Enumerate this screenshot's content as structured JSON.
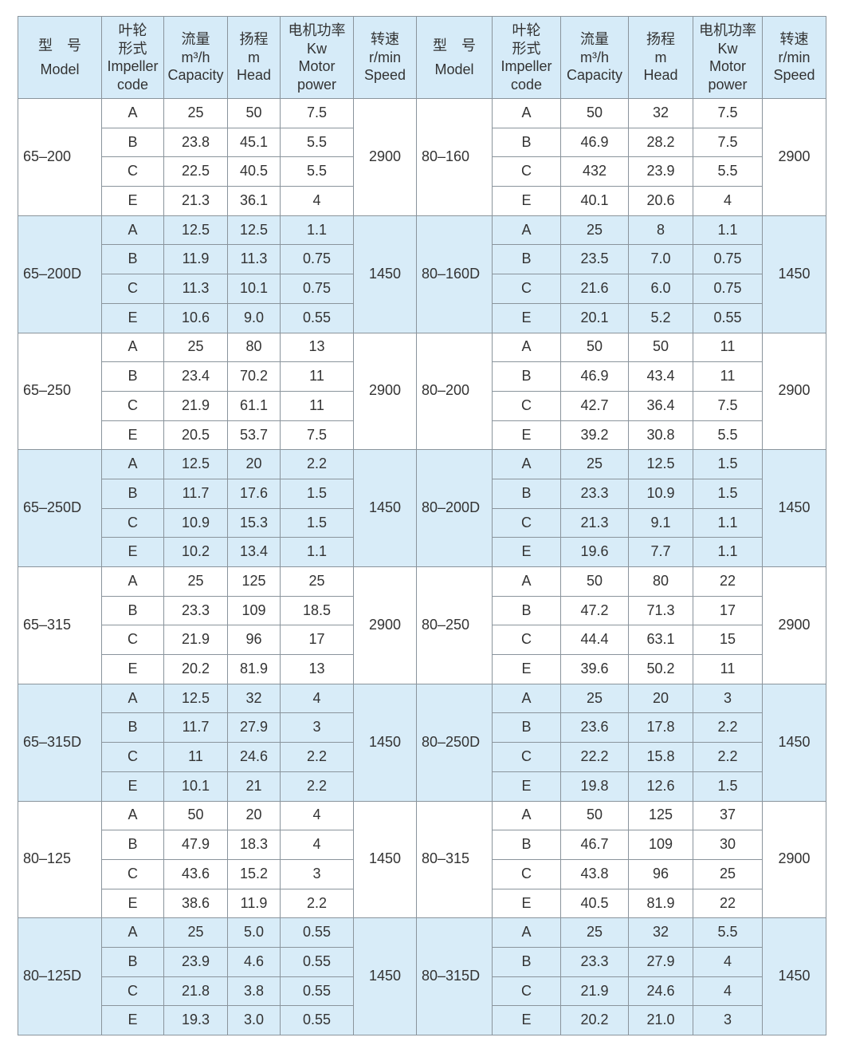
{
  "header": [
    [
      "型　号",
      "Model"
    ],
    [
      "叶轮",
      "形式",
      "Impeller",
      "code"
    ],
    [
      "流量",
      "m³/h",
      "Capacity"
    ],
    [
      "扬程",
      "m",
      "Head"
    ],
    [
      "电机功率",
      "Kw",
      "Motor",
      "power"
    ],
    [
      "转速",
      "r/min",
      "Speed"
    ]
  ],
  "colors": {
    "header_bg": "#d6ebf8",
    "band_blue": "#d8ecf8",
    "band_white": "#ffffff",
    "border": "#8a949c"
  },
  "left": [
    {
      "model": "65–200",
      "speed": "2900",
      "rows": [
        [
          "A",
          "25",
          "50",
          "7.5"
        ],
        [
          "B",
          "23.8",
          "45.1",
          "5.5"
        ],
        [
          "C",
          "22.5",
          "40.5",
          "5.5"
        ],
        [
          "E",
          "21.3",
          "36.1",
          "4"
        ]
      ]
    },
    {
      "model": "65–200D",
      "speed": "1450",
      "rows": [
        [
          "A",
          "12.5",
          "12.5",
          "1.1"
        ],
        [
          "B",
          "11.9",
          "11.3",
          "0.75"
        ],
        [
          "C",
          "11.3",
          "10.1",
          "0.75"
        ],
        [
          "E",
          "10.6",
          "9.0",
          "0.55"
        ]
      ]
    },
    {
      "model": "65–250",
      "speed": "2900",
      "rows": [
        [
          "A",
          "25",
          "80",
          "13"
        ],
        [
          "B",
          "23.4",
          "70.2",
          "11"
        ],
        [
          "C",
          "21.9",
          "61.1",
          "11"
        ],
        [
          "E",
          "20.5",
          "53.7",
          "7.5"
        ]
      ]
    },
    {
      "model": "65–250D",
      "speed": "1450",
      "rows": [
        [
          "A",
          "12.5",
          "20",
          "2.2"
        ],
        [
          "B",
          "11.7",
          "17.6",
          "1.5"
        ],
        [
          "C",
          "10.9",
          "15.3",
          "1.5"
        ],
        [
          "E",
          "10.2",
          "13.4",
          "1.1"
        ]
      ]
    },
    {
      "model": "65–315",
      "speed": "2900",
      "rows": [
        [
          "A",
          "25",
          "125",
          "25"
        ],
        [
          "B",
          "23.3",
          "109",
          "18.5"
        ],
        [
          "C",
          "21.9",
          "96",
          "17"
        ],
        [
          "E",
          "20.2",
          "81.9",
          "13"
        ]
      ]
    },
    {
      "model": "65–315D",
      "speed": "1450",
      "rows": [
        [
          "A",
          "12.5",
          "32",
          "4"
        ],
        [
          "B",
          "11.7",
          "27.9",
          "3"
        ],
        [
          "C",
          "11",
          "24.6",
          "2.2"
        ],
        [
          "E",
          "10.1",
          "21",
          "2.2"
        ]
      ]
    },
    {
      "model": "80–125",
      "speed": "1450",
      "rows": [
        [
          "A",
          "50",
          "20",
          "4"
        ],
        [
          "B",
          "47.9",
          "18.3",
          "4"
        ],
        [
          "C",
          "43.6",
          "15.2",
          "3"
        ],
        [
          "E",
          "38.6",
          "11.9",
          "2.2"
        ]
      ]
    },
    {
      "model": "80–125D",
      "speed": "1450",
      "rows": [
        [
          "A",
          "25",
          "5.0",
          "0.55"
        ],
        [
          "B",
          "23.9",
          "4.6",
          "0.55"
        ],
        [
          "C",
          "21.8",
          "3.8",
          "0.55"
        ],
        [
          "E",
          "19.3",
          "3.0",
          "0.55"
        ]
      ]
    }
  ],
  "right": [
    {
      "model": "80–160",
      "speed": "2900",
      "rows": [
        [
          "A",
          "50",
          "32",
          "7.5"
        ],
        [
          "B",
          "46.9",
          "28.2",
          "7.5"
        ],
        [
          "C",
          "432",
          "23.9",
          "5.5"
        ],
        [
          "E",
          "40.1",
          "20.6",
          "4"
        ]
      ]
    },
    {
      "model": "80–160D",
      "speed": "1450",
      "rows": [
        [
          "A",
          "25",
          "8",
          "1.1"
        ],
        [
          "B",
          "23.5",
          "7.0",
          "0.75"
        ],
        [
          "C",
          "21.6",
          "6.0",
          "0.75"
        ],
        [
          "E",
          "20.1",
          "5.2",
          "0.55"
        ]
      ]
    },
    {
      "model": "80–200",
      "speed": "2900",
      "rows": [
        [
          "A",
          "50",
          "50",
          "11"
        ],
        [
          "B",
          "46.9",
          "43.4",
          "11"
        ],
        [
          "C",
          "42.7",
          "36.4",
          "7.5"
        ],
        [
          "E",
          "39.2",
          "30.8",
          "5.5"
        ]
      ]
    },
    {
      "model": "80–200D",
      "speed": "1450",
      "rows": [
        [
          "A",
          "25",
          "12.5",
          "1.5"
        ],
        [
          "B",
          "23.3",
          "10.9",
          "1.5"
        ],
        [
          "C",
          "21.3",
          "9.1",
          "1.1"
        ],
        [
          "E",
          "19.6",
          "7.7",
          "1.1"
        ]
      ]
    },
    {
      "model": "80–250",
      "speed": "2900",
      "rows": [
        [
          "A",
          "50",
          "80",
          "22"
        ],
        [
          "B",
          "47.2",
          "71.3",
          "17"
        ],
        [
          "C",
          "44.4",
          "63.1",
          "15"
        ],
        [
          "E",
          "39.6",
          "50.2",
          "11"
        ]
      ]
    },
    {
      "model": "80–250D",
      "speed": "1450",
      "rows": [
        [
          "A",
          "25",
          "20",
          "3"
        ],
        [
          "B",
          "23.6",
          "17.8",
          "2.2"
        ],
        [
          "C",
          "22.2",
          "15.8",
          "2.2"
        ],
        [
          "E",
          "19.8",
          "12.6",
          "1.5"
        ]
      ]
    },
    {
      "model": "80–315",
      "speed": "2900",
      "rows": [
        [
          "A",
          "50",
          "125",
          "37"
        ],
        [
          "B",
          "46.7",
          "109",
          "30"
        ],
        [
          "C",
          "43.8",
          "96",
          "25"
        ],
        [
          "E",
          "40.5",
          "81.9",
          "22"
        ]
      ]
    },
    {
      "model": "80–315D",
      "speed": "1450",
      "rows": [
        [
          "A",
          "25",
          "32",
          "5.5"
        ],
        [
          "B",
          "23.3",
          "27.9",
          "4"
        ],
        [
          "C",
          "21.9",
          "24.6",
          "4"
        ],
        [
          "E",
          "20.2",
          "21.0",
          "3"
        ]
      ]
    }
  ]
}
